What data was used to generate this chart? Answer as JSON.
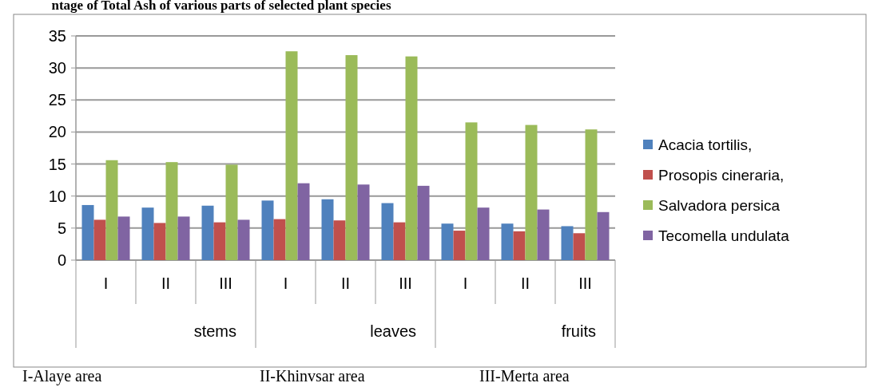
{
  "chart_data": {
    "type": "bar",
    "title": "ntage of Total Ash  of various parts of selected  plant species",
    "categories": [
      "I",
      "II",
      "III",
      "I",
      "II",
      "III",
      "I",
      "II",
      "III"
    ],
    "series": [
      {
        "name": "Acacia tortilis,",
        "color": "#4f81bd",
        "values": [
          8.6,
          8.2,
          8.5,
          9.3,
          9.5,
          8.9,
          5.7,
          5.7,
          5.3
        ]
      },
      {
        "name": "Prosopis cineraria,",
        "color": "#c0504d",
        "values": [
          6.3,
          5.8,
          5.9,
          6.4,
          6.2,
          5.9,
          4.6,
          4.5,
          4.2
        ]
      },
      {
        "name": "Salvadora persica",
        "color": "#9bbb59",
        "values": [
          15.6,
          15.3,
          14.9,
          32.6,
          32.0,
          31.8,
          21.5,
          21.1,
          20.4
        ]
      },
      {
        "name": "Tecomella undulata",
        "color": "#8064a2",
        "values": [
          6.8,
          6.8,
          6.3,
          12.0,
          11.8,
          11.6,
          8.2,
          7.9,
          7.5
        ]
      }
    ],
    "ylim": [
      0,
      35
    ],
    "yticks": [
      0,
      5,
      10,
      15,
      20,
      25,
      30,
      35
    ],
    "grid": "y",
    "legend": "right",
    "annotations": [
      "stems",
      "leaves",
      "fruits",
      "I-Alaye area",
      "II-Khinvsar area",
      "III-Merta area"
    ]
  }
}
